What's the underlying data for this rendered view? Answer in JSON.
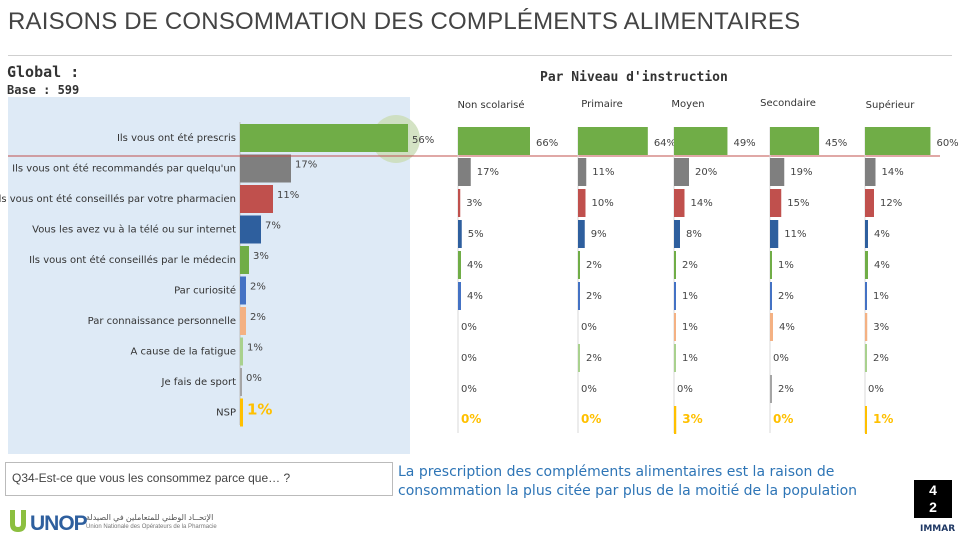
{
  "title": "RAISONS DE CONSOMMATION DES COMPLÉMENTS ALIMENTAIRES",
  "global_label": "Global :",
  "base_label": "Base : 599",
  "level_heading": "Par Niveau d'instruction",
  "question": "Q34-Est-ce que vous les consommez parce que… ?",
  "conclusion": "La prescription des compléments alimentaires est la raison de consommation la plus citée par plus de la moitié de la population",
  "logo_text": "UNOP",
  "arabic_line": "الإتحــاد الوطني للمتعاملين في الصيدلة",
  "union_line": "Union Nationale des Opérateurs de la Pharmacie",
  "page_number": [
    "4",
    "2"
  ],
  "immar_text": "IMMAR",
  "colors": {
    "bar_colors": [
      "#70ad47",
      "#7f7f7f",
      "#c0504d",
      "#2e5f9e",
      "#70ad47",
      "#4472c4",
      "#f4b183",
      "#a9d18e",
      "#a5a5a5",
      "#ffc000"
    ],
    "conclusion": "#2e75b6",
    "panel": "#deeaf6"
  },
  "chart_data": [
    {
      "type": "bar",
      "orientation": "horizontal",
      "title": "Global",
      "categories": [
        "Ils vous ont été prescris",
        "Ils vous ont été recommandés par quelqu'un",
        "Ils vous ont été conseillés par votre pharmacien",
        "Vous les avez vu à la télé ou sur internet",
        "Ils vous ont été conseillés par le médecin",
        "Par curiosité",
        "Par connaissance personnelle",
        "A cause de la fatigue",
        "Je fais de sport",
        "NSP"
      ],
      "values": [
        56,
        17,
        11,
        7,
        3,
        2,
        2,
        1,
        0,
        1
      ],
      "labels": [
        "56%",
        "17%",
        "11%",
        "7%",
        "3%",
        "2%",
        "2%",
        "1%",
        "0%",
        "1%"
      ],
      "unit": "%"
    },
    {
      "type": "bar",
      "orientation": "horizontal",
      "title": "Par Niveau d'instruction",
      "categories": [
        "Ils vous ont été prescris",
        "Ils vous ont été recommandés par quelqu'un",
        "Ils vous ont été conseillés par votre pharmacien",
        "Vous les avez vu à la télé ou sur internet",
        "Ils vous ont été conseillés par le médecin",
        "Par curiosité",
        "Par connaissance personnelle",
        "A cause de la fatigue",
        "Je fais de sport",
        "NSP"
      ],
      "series": [
        {
          "name": "Non scolarisé",
          "values": [
            66,
            17,
            3,
            5,
            4,
            4,
            0,
            0,
            0,
            0
          ],
          "labels": [
            "66%",
            "17%",
            "3%",
            "5%",
            "4%",
            "4%",
            "0%",
            "0%",
            "0%",
            "0%"
          ]
        },
        {
          "name": "Primaire",
          "values": [
            64,
            11,
            10,
            9,
            2,
            2,
            0,
            2,
            0,
            0
          ],
          "labels": [
            "64%",
            "11%",
            "10%",
            "9%",
            "2%",
            "2%",
            "0%",
            "2%",
            "0%",
            "0%"
          ]
        },
        {
          "name": "Moyen",
          "values": [
            49,
            20,
            14,
            8,
            2,
            1,
            1,
            1,
            0,
            3
          ],
          "labels": [
            "49%",
            "20%",
            "14%",
            "8%",
            "2%",
            "1%",
            "1%",
            "1%",
            "0%",
            "3%"
          ]
        },
        {
          "name": "Secondaire",
          "values": [
            45,
            19,
            15,
            11,
            1,
            2,
            4,
            0,
            2,
            0
          ],
          "labels": [
            "45%",
            "19%",
            "15%",
            "11%",
            "1%",
            "2%",
            "4%",
            "0%",
            "2%",
            "0%"
          ]
        },
        {
          "name": "Supérieur",
          "values": [
            60,
            14,
            12,
            4,
            4,
            1,
            3,
            2,
            0,
            1
          ],
          "labels": [
            "60%",
            "14%",
            "12%",
            "4%",
            "4%",
            "1%",
            "3%",
            "2%",
            "0%",
            "1%"
          ]
        }
      ],
      "unit": "%"
    }
  ]
}
